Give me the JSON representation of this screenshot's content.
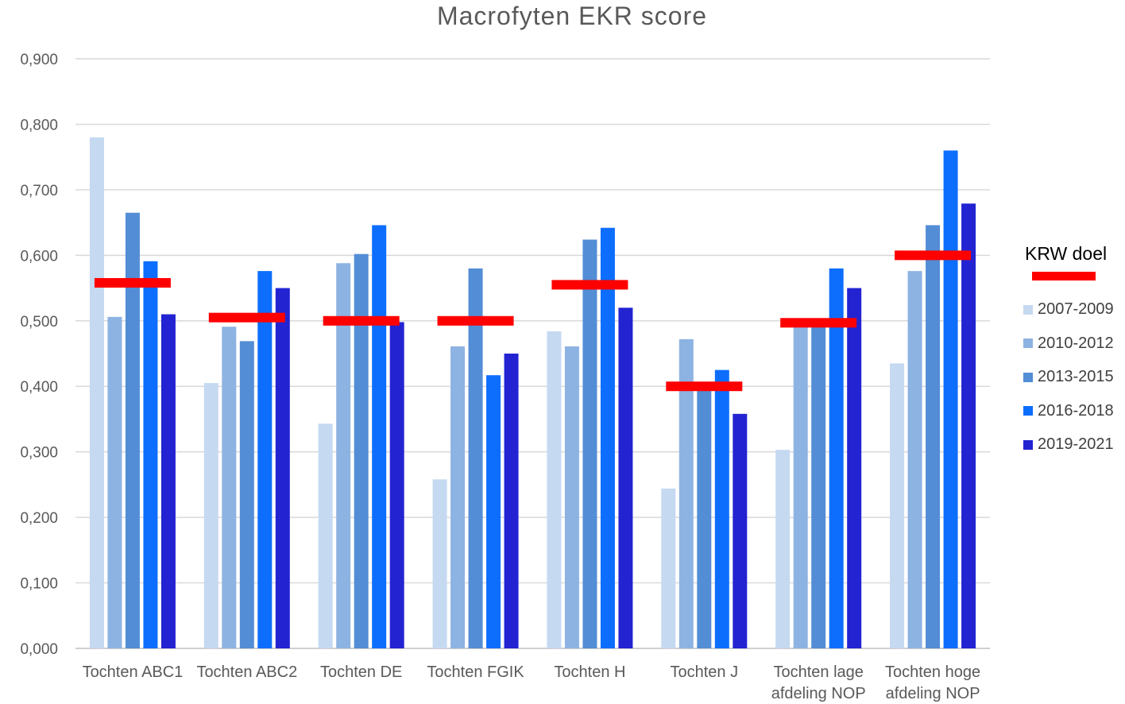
{
  "chart_data": {
    "type": "bar",
    "title": "Macrofyten EKR score",
    "categories": [
      "Tochten ABC1",
      "Tochten ABC2",
      "Tochten DE",
      "Tochten FGIK",
      "Tochten H",
      "Tochten J",
      "Tochten lage afdeling NOP",
      "Tochten hoge afdeling NOP"
    ],
    "category_lines": [
      [
        "Tochten ABC1"
      ],
      [
        "Tochten ABC2"
      ],
      [
        "Tochten DE"
      ],
      [
        "Tochten FGIK"
      ],
      [
        "Tochten H"
      ],
      [
        "Tochten J"
      ],
      [
        "Tochten lage",
        "afdeling NOP"
      ],
      [
        "Tochten hoge",
        "afdeling NOP"
      ]
    ],
    "series": [
      {
        "name": "2007-2009",
        "color": "#c5d9f1",
        "values": [
          0.78,
          0.405,
          0.343,
          0.258,
          0.484,
          0.244,
          0.303,
          0.435
        ]
      },
      {
        "name": "2010-2012",
        "color": "#8db3e2",
        "values": [
          0.506,
          0.491,
          0.588,
          0.461,
          0.461,
          0.472,
          0.497,
          0.576
        ]
      },
      {
        "name": "2013-2015",
        "color": "#538dd5",
        "values": [
          0.665,
          0.469,
          0.602,
          0.58,
          0.624,
          0.393,
          0.491,
          0.646
        ]
      },
      {
        "name": "2016-2018",
        "color": "#0d6efd",
        "values": [
          0.591,
          0.576,
          0.646,
          0.417,
          0.642,
          0.425,
          0.58,
          0.76
        ]
      },
      {
        "name": "2019-2021",
        "color": "#2323d2",
        "values": [
          0.51,
          0.55,
          0.498,
          0.45,
          0.52,
          0.358,
          0.55,
          0.679
        ]
      }
    ],
    "target": {
      "name": "KRW doel",
      "color": "#ff0000",
      "values": [
        0.558,
        0.505,
        0.5,
        0.5,
        0.555,
        0.4,
        0.497,
        0.6
      ]
    },
    "ylim": [
      0,
      0.9
    ],
    "yticks": [
      "0,000",
      "0,100",
      "0,200",
      "0,300",
      "0,400",
      "0,500",
      "0,600",
      "0,700",
      "0,800",
      "0,900"
    ],
    "xlabel": "",
    "ylabel": "",
    "grid": true,
    "legend_position": "right"
  }
}
